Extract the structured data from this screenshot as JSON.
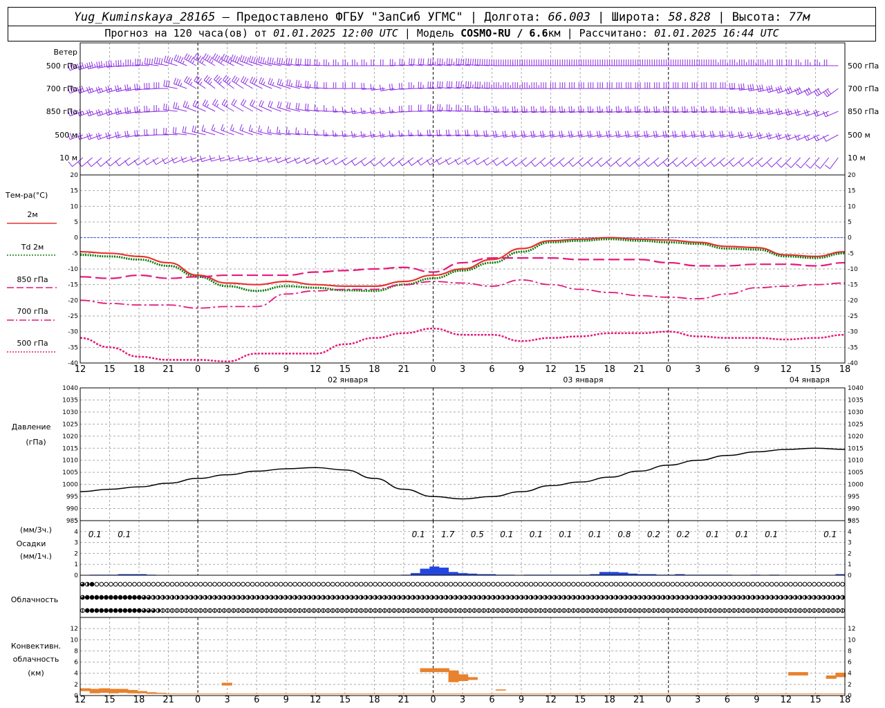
{
  "header": {
    "station": "Yug_Kuminskaya_28165",
    "provider": "— Предоставлено ФГБУ \"ЗапСиб УГМС\"",
    "lon_label": "| Долгота:",
    "lon": "66.003",
    "lat_label": "| Широта:",
    "lat": "58.828",
    "alt_label": "| Высота:",
    "alt": "77м",
    "forecast_label": "Прогноз на 120 часа(ов) от",
    "forecast_start": "01.01.2025 12:00 UTC",
    "model_label": "| Модель",
    "model": "COSMO-RU / 6.6",
    "model_unit": "км",
    "calc_label": "| Рассчитано:",
    "calc_time": "01.01.2025 16:44 UTC"
  },
  "labels": {
    "wind": "Ветер",
    "wind_levels": [
      "500 гПа",
      "700 гПа",
      "850 гПа",
      "500 м",
      "10 м"
    ],
    "temp_title": "Тем-ра(°С)",
    "temp_legend": [
      {
        "text": "2м",
        "color": "#e8322d",
        "style": "solid"
      },
      {
        "text": "Td  2м",
        "color": "#0a7a0a",
        "style": "dotted"
      },
      {
        "text": "850 гПа",
        "color": "#e6177a",
        "style": "long-dash"
      },
      {
        "text": "700 гПа",
        "color": "#e6177a",
        "style": "dash-dot"
      },
      {
        "text": "500 гПа",
        "color": "#e6177a",
        "style": "dotted"
      }
    ],
    "pressure_title": "Давление",
    "pressure_unit": "(гПа)",
    "precip_unit_3h": "(мм/3ч.)",
    "precip_title": "Осадки",
    "precip_unit_1h": "(мм/1ч.)",
    "cloud_title": "Облачность",
    "conv_title_1": "Конвективн.",
    "conv_title_2": "облачность",
    "conv_unit": "(км)"
  },
  "time_axis": {
    "hour_labels": [
      "12",
      "15",
      "18",
      "21",
      "0",
      "3",
      "6",
      "9",
      "12",
      "15",
      "18",
      "21",
      "0",
      "3",
      "6",
      "9",
      "12",
      "15",
      "18",
      "21",
      "0",
      "3",
      "6",
      "9",
      "12",
      "15",
      "18"
    ],
    "dates": [
      "02 января",
      "03 января",
      "04 января"
    ]
  },
  "colors": {
    "wind": "#8a2be2",
    "t2m": "#e8322d",
    "td2m": "#0a7a0a",
    "upper": "#e6177a",
    "pressure": "#000000",
    "precip": "#2446e0",
    "conv": "#e8822d",
    "zero_line": "#3355ee"
  },
  "chart_data": [
    {
      "type": "line",
      "title": "Тем-ра(°С)",
      "x": [
        "01 12",
        "01 15",
        "01 18",
        "01 21",
        "02 00",
        "02 03",
        "02 06",
        "02 09",
        "02 12",
        "02 15",
        "02 18",
        "02 21",
        "03 00",
        "03 03",
        "03 06",
        "03 09",
        "03 12",
        "03 15",
        "03 18",
        "03 21",
        "04 00",
        "04 03",
        "04 06",
        "04 09",
        "04 12",
        "04 15",
        "04 18"
      ],
      "ylim": [
        -40,
        20
      ],
      "yticks": [
        20,
        15,
        10,
        5,
        0,
        -5,
        -10,
        -15,
        -20,
        -25,
        -30,
        -35,
        -40
      ],
      "series": [
        {
          "name": "2м",
          "values": [
            -4.5,
            -5,
            -6,
            -8,
            -12,
            -14.5,
            -15,
            -14,
            -15,
            -15.5,
            -15.5,
            -14,
            -12,
            -10,
            -7,
            -3.5,
            -1,
            -0.5,
            0,
            -0.5,
            -0.8,
            -1.5,
            -2.8,
            -3.2,
            -5.5,
            -6,
            -4.5
          ]
        },
        {
          "name": "Td  2м",
          "values": [
            -5.5,
            -6,
            -7,
            -9,
            -12.5,
            -15.5,
            -17,
            -15.5,
            -16,
            -16.8,
            -17,
            -15,
            -13,
            -10.5,
            -8,
            -4.5,
            -1.5,
            -1,
            -0.5,
            -1,
            -1.5,
            -2,
            -3.5,
            -3.8,
            -6,
            -6.5,
            -5
          ]
        },
        {
          "name": "850 гПа",
          "values": [
            -12.5,
            -13,
            -12,
            -13,
            -12.5,
            -12,
            -12,
            -12,
            -11,
            -10.5,
            -10,
            -9.5,
            -11,
            -8,
            -6.5,
            -6.5,
            -6.5,
            -7,
            -7,
            -7,
            -8,
            -9,
            -9,
            -8.5,
            -8.5,
            -9,
            -8
          ]
        },
        {
          "name": "700 гПа",
          "values": [
            -20,
            -21,
            -21.5,
            -21.5,
            -22.5,
            -22,
            -22,
            -18,
            -17,
            -16.5,
            -16.5,
            -15,
            -14,
            -14.5,
            -15.5,
            -13.5,
            -15,
            -16.5,
            -17.5,
            -18.5,
            -19,
            -19.5,
            -18,
            -16,
            -15.5,
            -15,
            -14.5
          ]
        },
        {
          "name": "500 гПа",
          "values": [
            -32,
            -35,
            -38,
            -39,
            -39,
            -39.5,
            -37,
            -37,
            -37,
            -34,
            -32,
            -30.5,
            -29,
            -31,
            -31,
            -33,
            -32,
            -31.5,
            -30.5,
            -30.5,
            -30,
            -31.5,
            -32,
            -32,
            -32.5,
            -32,
            -31
          ]
        }
      ]
    },
    {
      "type": "line",
      "title": "Давление",
      "ylabel": "(гПа)",
      "ylim": [
        985,
        1040
      ],
      "yticks": [
        1040,
        1035,
        1030,
        1025,
        1020,
        1015,
        1010,
        1005,
        1000,
        995,
        990,
        985
      ],
      "series": [
        {
          "name": "Давление",
          "values": [
            997,
            998,
            999,
            1000.5,
            1002.5,
            1004,
            1005.5,
            1006.5,
            1007,
            1006,
            1002.5,
            998,
            995,
            994,
            995,
            997,
            999.5,
            1001,
            1003,
            1005.5,
            1008,
            1010,
            1012,
            1013.5,
            1014.5,
            1015,
            1014.5
          ]
        }
      ]
    },
    {
      "type": "bar",
      "title": "Осадки",
      "ylim": [
        0,
        5
      ],
      "yticks": [
        5,
        4,
        3,
        2,
        1,
        0
      ],
      "categories": [
        "01 12",
        "01 15",
        "01 18",
        "01 21",
        "02 00",
        "02 03",
        "02 06",
        "02 09",
        "02 12",
        "02 15",
        "02 18",
        "02 21",
        "03 00",
        "03 03",
        "03 06",
        "03 09",
        "03 12",
        "03 15",
        "03 18",
        "03 21",
        "04 00",
        "04 03",
        "04 06",
        "04 09",
        "04 12",
        "04 15",
        "04 18"
      ],
      "sums_3h": [
        "0.1",
        "0.1",
        "",
        "",
        "",
        "",
        "",
        "",
        "",
        "",
        "",
        "0.1",
        "1.7",
        "0.5",
        "0.1",
        "0.1",
        "0.1",
        "0.1",
        "0.8",
        "0.2",
        "0.2",
        "0.1",
        "0.1",
        "0.1",
        "",
        "0.1",
        ""
      ],
      "hourly": [
        0,
        0.05,
        0.05,
        0.05,
        0.1,
        0.1,
        0.1,
        0.05,
        0,
        0,
        0,
        0,
        0,
        0,
        0,
        0,
        0,
        0,
        0,
        0,
        0,
        0,
        0,
        0,
        0,
        0,
        0,
        0,
        0,
        0,
        0,
        0,
        0,
        0,
        0.05,
        0.2,
        0.6,
        0.8,
        0.7,
        0.3,
        0.2,
        0.15,
        0.1,
        0.1,
        0.05,
        0.05,
        0,
        0.05,
        0.05,
        0.05,
        0.05,
        0.05,
        0.05,
        0.05,
        0.1,
        0.3,
        0.3,
        0.25,
        0.15,
        0.1,
        0.1,
        0.05,
        0.05,
        0.1,
        0.05,
        0.05,
        0.05,
        0.05,
        0.05,
        0,
        0,
        0.05,
        0,
        0.05,
        0,
        0,
        0,
        0,
        0,
        0,
        0.1
      ]
    },
    {
      "type": "table",
      "title": "Облачность",
      "rows": [
        [
          3,
          2,
          4,
          0,
          0,
          0,
          0,
          0,
          0,
          0,
          0,
          0,
          0,
          0,
          0,
          0,
          0,
          0,
          0,
          0,
          0,
          0,
          0,
          0,
          0,
          0,
          0,
          0,
          0,
          0,
          0,
          0,
          0,
          0,
          0,
          0,
          0,
          0,
          0,
          0,
          0,
          0,
          0,
          0,
          0,
          0,
          0,
          0,
          0,
          0,
          0,
          0,
          0,
          0,
          0,
          0,
          0,
          0,
          0,
          0,
          0,
          0,
          0,
          0,
          0,
          0,
          0,
          0,
          0,
          0,
          0,
          0,
          0,
          0,
          0,
          0,
          0,
          0,
          0,
          0,
          0,
          0,
          0,
          0,
          0,
          0,
          0,
          0,
          0,
          0,
          0,
          0,
          0,
          0,
          0,
          0,
          0,
          0,
          0,
          0,
          0,
          0,
          0,
          0,
          0,
          0,
          0,
          0,
          0,
          0,
          0,
          0,
          0,
          0,
          0,
          0,
          0,
          0,
          0,
          0,
          0,
          0,
          0,
          0,
          0,
          0,
          0,
          0,
          0,
          0,
          0,
          0,
          0,
          0,
          0,
          0,
          0,
          0,
          0,
          0,
          0,
          0,
          0,
          0,
          0,
          0,
          0,
          0,
          0,
          0,
          0,
          0,
          0,
          0,
          0,
          0,
          0,
          0,
          0,
          0,
          0,
          0
        ],
        [
          3,
          4,
          4,
          4,
          4,
          4,
          4,
          4,
          4,
          4,
          4,
          4,
          4,
          3,
          3,
          2,
          2,
          2,
          2,
          2,
          2,
          2,
          2,
          2,
          2,
          2,
          2,
          2,
          2,
          2,
          2,
          2,
          2,
          2,
          2,
          2,
          2,
          2,
          2,
          2,
          2,
          2,
          2,
          2,
          2,
          2,
          2,
          2,
          2,
          2,
          2,
          2,
          2,
          2,
          2,
          2,
          2,
          2,
          2,
          2,
          2,
          2,
          2,
          2,
          2,
          2,
          2,
          2,
          2,
          2,
          2,
          2,
          2,
          2,
          2,
          2,
          2,
          2,
          2,
          2,
          2,
          2,
          2,
          2,
          2,
          2,
          2,
          2,
          2,
          2,
          2,
          2,
          2,
          2,
          2,
          2,
          2,
          2,
          2,
          2,
          2,
          2,
          2,
          2,
          2,
          2,
          2,
          2,
          2,
          2,
          2,
          2,
          2,
          2,
          2,
          2,
          2,
          2,
          2,
          2,
          2,
          2,
          2,
          2,
          2,
          2,
          2,
          2,
          2,
          2,
          2,
          2,
          2,
          2,
          2,
          2,
          2,
          2,
          2,
          2,
          2,
          2,
          2,
          2,
          2,
          2,
          2,
          2,
          2,
          2,
          2,
          2,
          2,
          2,
          2,
          2,
          2,
          2,
          2,
          2,
          2,
          2
        ],
        [
          1,
          4,
          4,
          4,
          4,
          4,
          4,
          4,
          4,
          4,
          4,
          4,
          4,
          3,
          3,
          3,
          2,
          1,
          1,
          1,
          1,
          1,
          1,
          1,
          1,
          1,
          1,
          1,
          1,
          1,
          1,
          1,
          1,
          1,
          1,
          1,
          1,
          1,
          1,
          1,
          1,
          1,
          1,
          1,
          1,
          1,
          1,
          1,
          1,
          1,
          1,
          1,
          1,
          1,
          1,
          1,
          1,
          1,
          1,
          1,
          1,
          1,
          1,
          1,
          1,
          1,
          1,
          1,
          1,
          1,
          1,
          1,
          1,
          1,
          1,
          1,
          1,
          1,
          1,
          1,
          1,
          1,
          1,
          1,
          1,
          1,
          1,
          1,
          1,
          1,
          1,
          1,
          1,
          1,
          1,
          1,
          1,
          1,
          1,
          1,
          1,
          1,
          1,
          1,
          1,
          1,
          1,
          1,
          1,
          1,
          1,
          1,
          1,
          1,
          1,
          1,
          1,
          1,
          1,
          1,
          1,
          1,
          1,
          1,
          1,
          1,
          1,
          1,
          1,
          1,
          1,
          1,
          1,
          1,
          1,
          1,
          1,
          1,
          1,
          1,
          1,
          1,
          1,
          1,
          1,
          1,
          1,
          1,
          1,
          1,
          1,
          1,
          1,
          1,
          1,
          1,
          1,
          1,
          1,
          1,
          1,
          1
        ]
      ]
    },
    {
      "type": "bar",
      "title": "Конвективн. облачность",
      "ylabel": "(км)",
      "ylim": [
        0,
        14
      ],
      "yticks": [
        12,
        10,
        8,
        6,
        4,
        2,
        0
      ],
      "segments": [
        {
          "t": 0,
          "base": 0.8,
          "top": 1.3
        },
        {
          "t": 1,
          "base": 0.4,
          "top": 1.2
        },
        {
          "t": 2,
          "base": 0.5,
          "top": 1.3
        },
        {
          "t": 3,
          "base": 0.4,
          "top": 1.2
        },
        {
          "t": 4,
          "base": 0.5,
          "top": 1.2
        },
        {
          "t": 5,
          "base": 0.4,
          "top": 1.0
        },
        {
          "t": 6,
          "base": 0.4,
          "top": 0.8
        },
        {
          "t": 7,
          "base": 0.3,
          "top": 0.6
        },
        {
          "t": 8,
          "base": 0.3,
          "top": 0.5
        },
        {
          "t": 15,
          "base": 1.8,
          "top": 2.3
        },
        {
          "t": 36,
          "base": 4.2,
          "top": 4.9
        },
        {
          "t": 37,
          "base": 4.2,
          "top": 4.9
        },
        {
          "t": 38,
          "base": 4.2,
          "top": 4.9
        },
        {
          "t": 39,
          "base": 2.4,
          "top": 4.5
        },
        {
          "t": 40,
          "base": 2.6,
          "top": 3.8
        },
        {
          "t": 41,
          "base": 2.8,
          "top": 3.3
        },
        {
          "t": 44,
          "base": 0.9,
          "top": 1.1
        },
        {
          "t": 75,
          "base": 3.6,
          "top": 4.2
        },
        {
          "t": 76,
          "base": 3.6,
          "top": 4.2
        },
        {
          "t": 79,
          "base": 3.0,
          "top": 3.6
        },
        {
          "t": 80,
          "base": 3.3,
          "top": 4.1
        }
      ],
      "thin_line_km": 0.3
    }
  ]
}
